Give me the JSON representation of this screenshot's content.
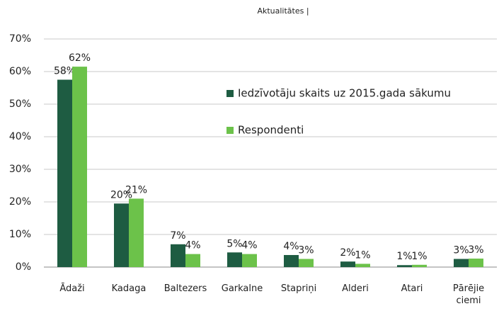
{
  "chart_data": {
    "type": "bar",
    "title": "Aktualitātes |",
    "categories": [
      "Ādaži",
      "Kadaga",
      "Baltezers",
      "Garkalne",
      "Stapriņi",
      "Alderi",
      "Atari",
      "Pārējie ciemi"
    ],
    "series": [
      {
        "name": "Iedzīvotāju skaits uz 2015.gada sākumu",
        "color": "#1e5c42",
        "values": [
          57.5,
          19.5,
          7,
          4.5,
          3.7,
          1.7,
          0.6,
          2.5
        ],
        "value_labels": [
          "58%",
          "20%",
          "7%",
          "5%",
          "4%",
          "2%",
          "1%",
          "3%"
        ]
      },
      {
        "name": "Respondenti",
        "color": "#6cc24a",
        "values": [
          61.5,
          21,
          4,
          4,
          2.5,
          1,
          0.7,
          2.6
        ],
        "value_labels": [
          "62%",
          "21%",
          "4%",
          "4%",
          "3%",
          "1%",
          "1%",
          "3%"
        ]
      }
    ],
    "ylim": [
      0,
      70
    ],
    "yticks": [
      {
        "value": 0,
        "label": "0%"
      },
      {
        "value": 10,
        "label": "10%"
      },
      {
        "value": 20,
        "label": "20%"
      },
      {
        "value": 30,
        "label": "30%"
      },
      {
        "value": 40,
        "label": "40%"
      },
      {
        "value": 50,
        "label": "50%"
      },
      {
        "value": 60,
        "label": "60%"
      },
      {
        "value": 70,
        "label": "70%"
      }
    ],
    "grid": true,
    "legend": "right"
  }
}
